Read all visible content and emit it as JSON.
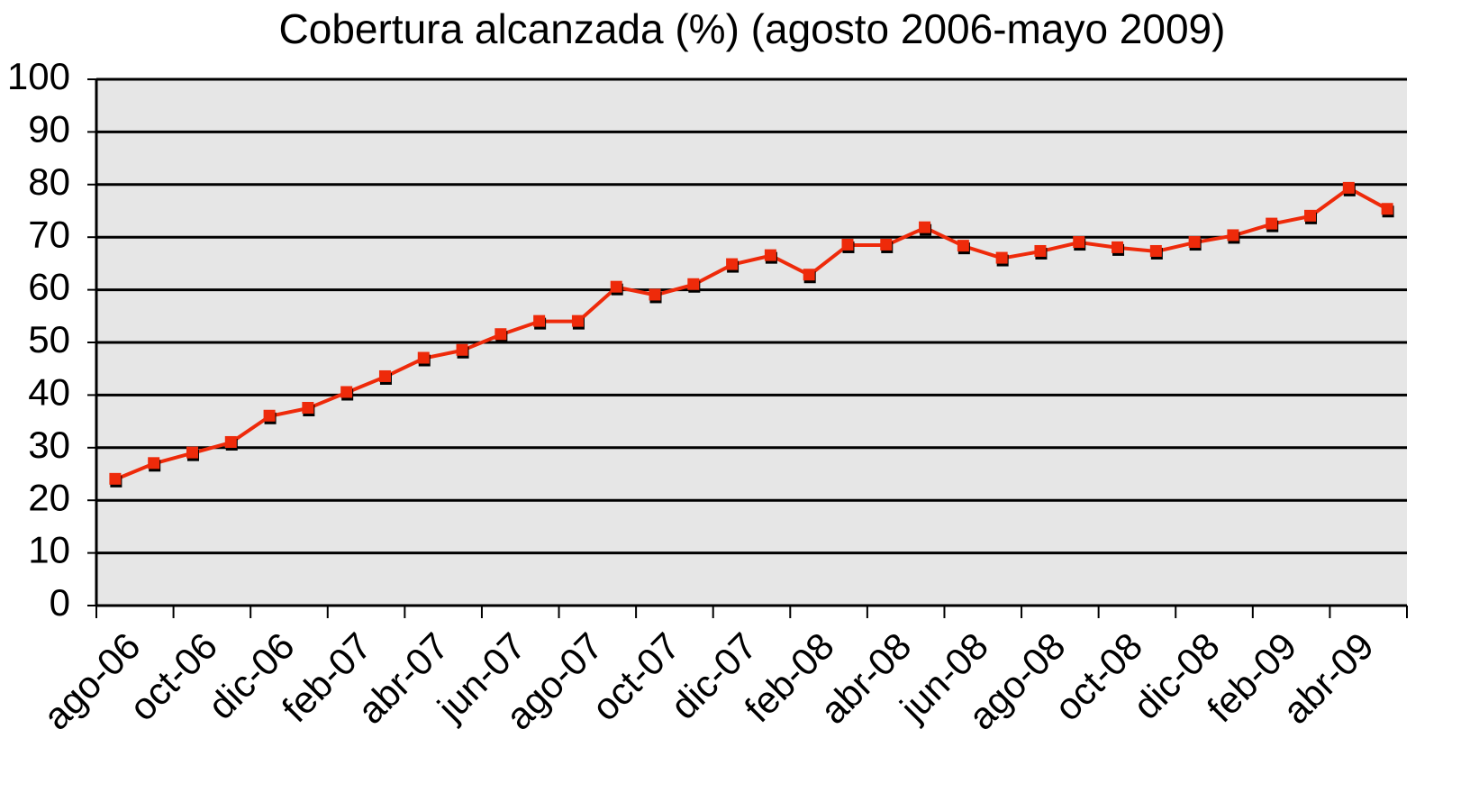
{
  "chart_data": {
    "type": "line",
    "title": "Cobertura alcanzada (%) (agosto 2006-mayo 2009)",
    "categories": [
      "ago-06",
      null,
      "oct-06",
      null,
      "dic-06",
      null,
      "feb-07",
      null,
      "abr-07",
      null,
      "jun-07",
      null,
      "ago-07",
      null,
      "oct-07",
      null,
      "dic-07",
      null,
      "feb-08",
      null,
      "abr-08",
      null,
      "jun-08",
      null,
      "ago-08",
      null,
      "oct-08",
      null,
      "dic-08",
      null,
      "feb-09",
      null,
      "abr-09",
      null
    ],
    "series": [
      {
        "color": "#ee2a0a",
        "values": [
          24,
          27,
          29,
          31,
          36,
          37.5,
          40.5,
          43.5,
          47,
          48.5,
          51.5,
          54,
          54,
          60.5,
          59,
          61,
          64.8,
          66.5,
          62.8,
          68.5,
          68.5,
          71.8,
          68.3,
          66,
          67.3,
          69,
          68,
          67.3,
          69,
          70.3,
          72.5,
          74,
          79.3,
          75.3
        ]
      }
    ],
    "ylim": [
      0,
      100
    ],
    "yticks": [
      0,
      10,
      20,
      30,
      40,
      50,
      60,
      70,
      80,
      90,
      100
    ],
    "grid": true
  }
}
